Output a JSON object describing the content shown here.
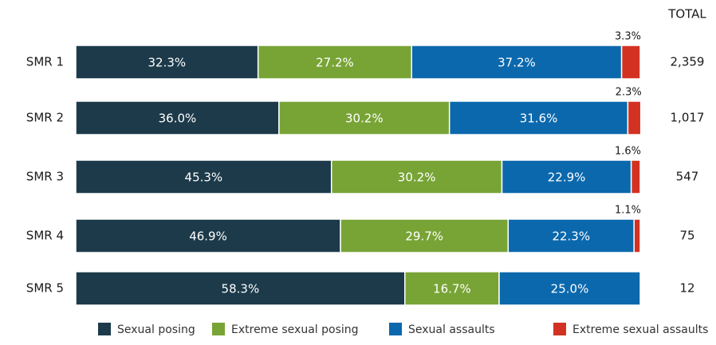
{
  "chart_data": {
    "type": "stacked-bar",
    "orientation": "horizontal",
    "categories": [
      "SMR 1",
      "SMR 2",
      "SMR 3",
      "SMR 4",
      "SMR 5"
    ],
    "series": [
      {
        "name": "Sexual posing",
        "color": "#1c3a4a",
        "values": [
          32.3,
          36.0,
          45.3,
          46.9,
          58.3
        ],
        "value_labels": [
          "32.3%",
          "36.0%",
          "45.3%",
          "46.9%",
          "58.3%"
        ]
      },
      {
        "name": "Extreme sexual posing",
        "color": "#78a436",
        "values": [
          27.2,
          30.2,
          30.2,
          29.7,
          16.7
        ],
        "value_labels": [
          "27.2%",
          "30.2%",
          "30.2%",
          "29.7%",
          "16.7%"
        ]
      },
      {
        "name": "Sexual assaults",
        "color": "#0b68ad",
        "values": [
          37.2,
          31.6,
          22.9,
          22.3,
          25.0
        ],
        "value_labels": [
          "37.2%",
          "31.6%",
          "22.9%",
          "22.3%",
          "25.0%"
        ]
      },
      {
        "name": "Extreme sexual assaults",
        "color": "#d33222",
        "values": [
          3.3,
          2.3,
          1.6,
          1.1,
          null
        ],
        "value_labels": [
          "3.3%",
          "2.3%",
          "1.6%",
          "1.1%",
          null
        ]
      }
    ],
    "xlim": [
      0,
      100
    ],
    "totals_header": "TOTAL",
    "totals": [
      {
        "value": 2359,
        "label": "2,359"
      },
      {
        "value": 1017,
        "label": "1,017"
      },
      {
        "value": 547,
        "label": "547"
      },
      {
        "value": 75,
        "label": "75"
      },
      {
        "value": 12,
        "label": "12"
      }
    ]
  }
}
